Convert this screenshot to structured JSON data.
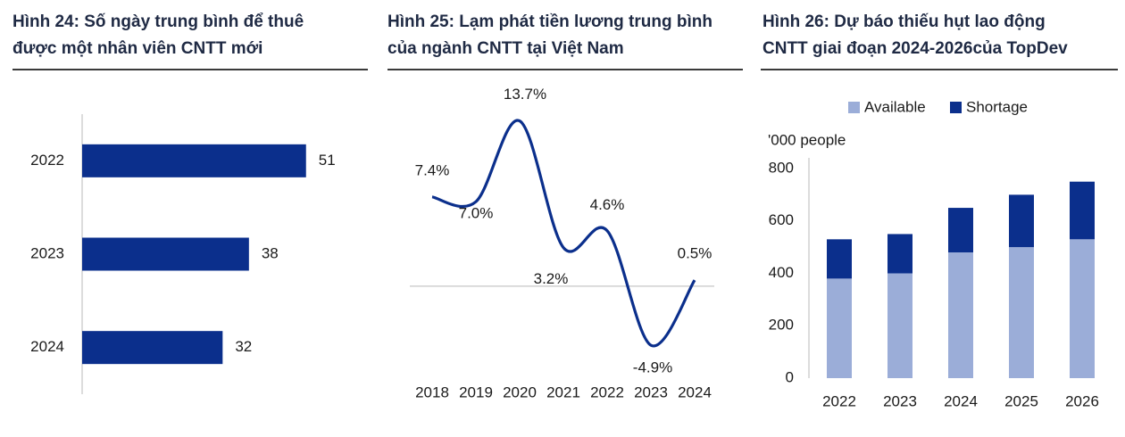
{
  "figures": [
    {
      "title_lines": [
        "Hình 24: Số ngày trung bình để thuê",
        "được một nhân viên CNTT mới"
      ]
    },
    {
      "title_lines": [
        "Hình 25: Lạm phát tiền lương trung bình",
        "của ngành CNTT tại Việt Nam"
      ]
    },
    {
      "title_lines": [
        "Hình 26: Dự báo thiếu hụt lao động",
        "CNTT giai đoạn 2024-2026của TopDev"
      ]
    }
  ],
  "colors": {
    "navy": "#0b2f8c",
    "light_blue": "#9badd8",
    "axis": "#d0d0d0",
    "text": "#1a1a1a"
  },
  "chart_data": [
    {
      "type": "bar",
      "orientation": "horizontal",
      "categories": [
        "2022",
        "2023",
        "2024"
      ],
      "values": [
        51,
        38,
        32
      ],
      "data_labels": [
        "51",
        "38",
        "32"
      ],
      "xlim": [
        0,
        60
      ]
    },
    {
      "type": "line",
      "x": [
        "2018",
        "2019",
        "2020",
        "2021",
        "2022",
        "2023",
        "2024"
      ],
      "values": [
        7.4,
        7.0,
        13.7,
        3.2,
        4.6,
        -4.9,
        0.5
      ],
      "data_labels": [
        "7.4%",
        "7.0%",
        "13.7%",
        "3.2%",
        "4.6%",
        "-4.9%",
        "0.5%"
      ],
      "smooth": true,
      "ylim": [
        -6,
        15
      ]
    },
    {
      "type": "bar",
      "stacked": true,
      "categories": [
        "2022",
        "2023",
        "2024",
        "2025",
        "2026"
      ],
      "series": [
        {
          "name": "Available",
          "values": [
            380,
            400,
            480,
            500,
            530
          ]
        },
        {
          "name": "Shortage",
          "values": [
            150,
            150,
            170,
            200,
            220
          ]
        }
      ],
      "unit_label": "'000 people",
      "yticks": [
        "0",
        "200",
        "400",
        "600",
        "800"
      ],
      "ylim": [
        0,
        800
      ],
      "legend_position": "top"
    }
  ]
}
